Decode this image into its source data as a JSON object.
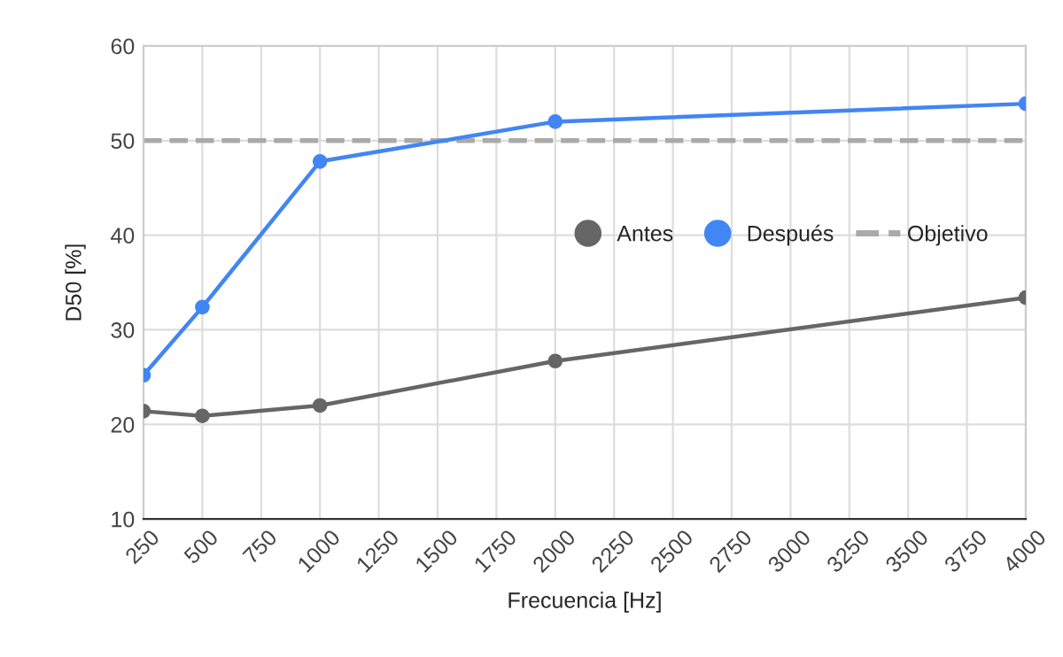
{
  "chart_data": {
    "type": "line",
    "xlabel": "Frecuencia [Hz]",
    "ylabel": "D50 [%]",
    "x": [
      250,
      500,
      1000,
      2000,
      4000
    ],
    "series": [
      {
        "name": "Antes",
        "color": "#666666",
        "values": [
          21.4,
          20.9,
          22.0,
          26.7,
          33.4
        ]
      },
      {
        "name": "Después",
        "color": "#4285f4",
        "values": [
          25.2,
          32.4,
          47.8,
          52.0,
          53.9
        ]
      }
    ],
    "ref_lines": [
      {
        "axis": "y",
        "value": 50,
        "label": "Objetivo",
        "color": "#aaaaaa",
        "line_style": "dashed"
      }
    ],
    "xlim": [
      250,
      4000
    ],
    "xticks": [
      250,
      500,
      750,
      1000,
      1250,
      1500,
      1750,
      2000,
      2250,
      2500,
      2750,
      3000,
      3250,
      3500,
      3750,
      4000
    ],
    "ylim": [
      10,
      60
    ],
    "yticks": [
      10,
      20,
      30,
      40,
      50,
      60
    ],
    "grid": true,
    "legend": "center right",
    "marker": "circle",
    "line_style": "solid"
  }
}
